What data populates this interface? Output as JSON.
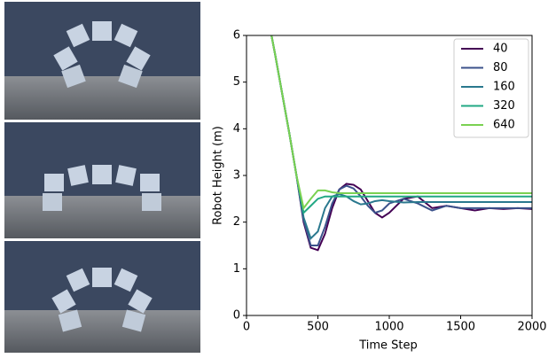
{
  "chart_data": {
    "type": "line",
    "xlabel": "Time Step",
    "ylabel": "Robot Height (m)",
    "xlim": [
      0,
      2000
    ],
    "ylim": [
      0,
      6
    ],
    "xticks": [
      0,
      500,
      1000,
      1500,
      2000
    ],
    "yticks": [
      0,
      1,
      2,
      3,
      4,
      5,
      6
    ],
    "legend": "upper right",
    "x": [
      175,
      200,
      250,
      300,
      350,
      400,
      450,
      500,
      550,
      600,
      650,
      700,
      750,
      800,
      850,
      900,
      950,
      1000,
      1100,
      1200,
      1300,
      1400,
      1500,
      1600,
      1700,
      1800,
      1900,
      2000
    ],
    "series": [
      {
        "name": "40",
        "color": "#440154",
        "values": [
          6.0,
          5.6,
          4.75,
          3.9,
          3.0,
          2.0,
          1.45,
          1.4,
          1.75,
          2.3,
          2.7,
          2.82,
          2.8,
          2.7,
          2.45,
          2.2,
          2.1,
          2.2,
          2.5,
          2.55,
          2.3,
          2.35,
          2.3,
          2.25,
          2.3,
          2.28,
          2.3,
          2.28
        ]
      },
      {
        "name": "80",
        "color": "#3b528b",
        "values": [
          6.0,
          5.6,
          4.75,
          3.9,
          3.0,
          2.05,
          1.5,
          1.5,
          1.9,
          2.4,
          2.7,
          2.78,
          2.72,
          2.55,
          2.35,
          2.2,
          2.25,
          2.4,
          2.5,
          2.4,
          2.25,
          2.35,
          2.3,
          2.3,
          2.3,
          2.3,
          2.3,
          2.3
        ]
      },
      {
        "name": "160",
        "color": "#2a788e",
        "values": [
          6.0,
          5.6,
          4.75,
          3.9,
          3.0,
          2.1,
          1.65,
          1.8,
          2.3,
          2.55,
          2.6,
          2.55,
          2.45,
          2.38,
          2.4,
          2.45,
          2.47,
          2.45,
          2.42,
          2.43,
          2.43,
          2.43,
          2.43,
          2.43,
          2.43,
          2.43,
          2.43,
          2.43
        ]
      },
      {
        "name": "320",
        "color": "#22a884",
        "values": [
          6.0,
          5.6,
          4.75,
          3.9,
          3.0,
          2.2,
          2.35,
          2.5,
          2.55,
          2.55,
          2.55,
          2.55,
          2.55,
          2.55,
          2.55,
          2.55,
          2.55,
          2.55,
          2.55,
          2.55,
          2.55,
          2.55,
          2.55,
          2.55,
          2.55,
          2.55,
          2.55,
          2.55
        ]
      },
      {
        "name": "640",
        "color": "#7ad151",
        "values": [
          6.0,
          5.6,
          4.75,
          3.9,
          3.0,
          2.3,
          2.5,
          2.68,
          2.68,
          2.64,
          2.62,
          2.62,
          2.62,
          2.62,
          2.62,
          2.62,
          2.62,
          2.62,
          2.62,
          2.62,
          2.62,
          2.62,
          2.62,
          2.62,
          2.62,
          2.62,
          2.62,
          2.62
        ]
      }
    ]
  }
}
